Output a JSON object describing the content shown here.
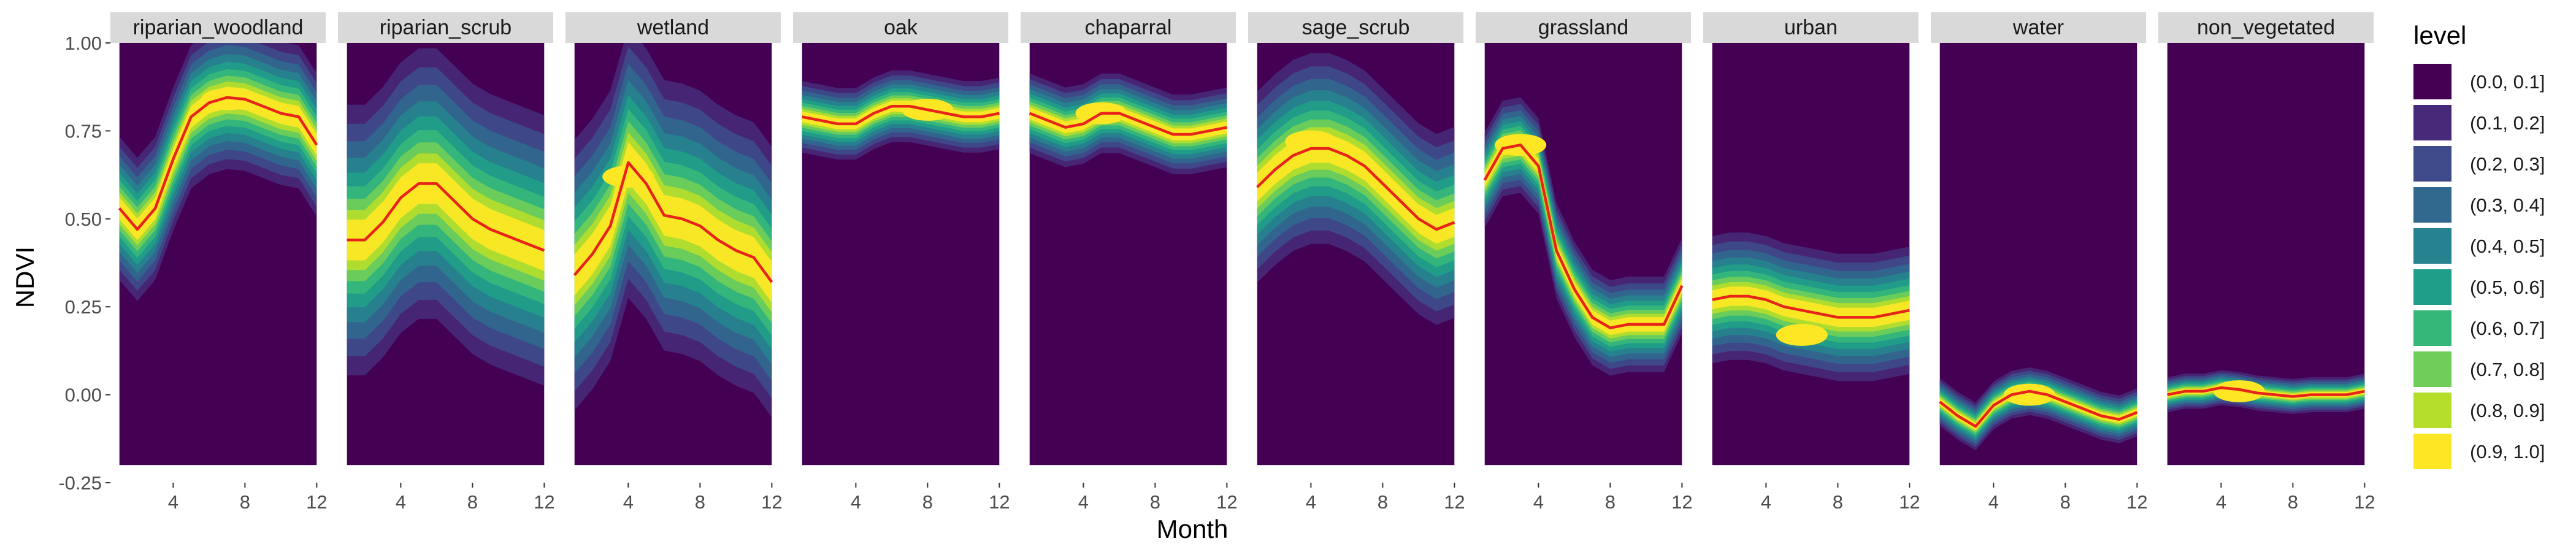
{
  "colors": {
    "strip_bg": "#d9d9d9",
    "tick": "#333333",
    "mean_line": "#e8231a",
    "levels": [
      "#440154",
      "#482878",
      "#3e4a89",
      "#31688e",
      "#26828e",
      "#1f9e89",
      "#35b779",
      "#6ece58",
      "#b5de2b",
      "#fde725"
    ]
  },
  "chart_data": {
    "type": "area",
    "subtype": "faceted filled 2D density (month vs NDVI) with monthly mean line",
    "xlabel": "Month",
    "ylabel": "NDVI",
    "xlim": [
      0.5,
      12.5
    ],
    "ylim": [
      -0.25,
      1.0
    ],
    "x_ticks": [
      4,
      8,
      12
    ],
    "x_tick_labels": [
      "4",
      "8",
      "12"
    ],
    "y_ticks": [
      1.0,
      0.75,
      0.5,
      0.25,
      0.0,
      -0.25
    ],
    "y_tick_labels": [
      "1.00",
      "0.75",
      "0.50",
      "0.25",
      "0.00",
      "-0.25"
    ],
    "density_band": {
      "x": [
        1,
        12
      ],
      "y": [
        -0.2,
        1.0
      ]
    },
    "legend": {
      "title": "level",
      "position": "right",
      "entries": [
        "(0.0, 0.1]",
        "(0.1, 0.2]",
        "(0.2, 0.3]",
        "(0.3, 0.4]",
        "(0.4, 0.5]",
        "(0.5, 0.6]",
        "(0.6, 0.7]",
        "(0.7, 0.8]",
        "(0.8, 0.9]",
        "(0.9, 1.0]"
      ]
    },
    "facets": [
      {
        "name": "riparian_woodland",
        "mean": [
          0.53,
          0.47,
          0.53,
          0.67,
          0.79,
          0.83,
          0.845,
          0.84,
          0.82,
          0.8,
          0.79,
          0.71
        ],
        "spread": 0.09,
        "peak_x": 7,
        "peak_y": 0.84
      },
      {
        "name": "riparian_scrub",
        "mean": [
          0.44,
          0.44,
          0.49,
          0.56,
          0.6,
          0.6,
          0.55,
          0.5,
          0.47,
          0.45,
          0.43,
          0.41
        ],
        "spread": 0.17,
        "peak_x": 5,
        "peak_y": 0.58
      },
      {
        "name": "wetland",
        "mean": [
          0.34,
          0.4,
          0.48,
          0.66,
          0.6,
          0.51,
          0.5,
          0.48,
          0.44,
          0.41,
          0.39,
          0.32
        ],
        "spread": 0.17,
        "peak_x": 4,
        "peak_y": 0.62
      },
      {
        "name": "oak",
        "mean": [
          0.79,
          0.78,
          0.77,
          0.77,
          0.8,
          0.82,
          0.82,
          0.81,
          0.8,
          0.79,
          0.79,
          0.8
        ],
        "spread": 0.045,
        "peak_x": 8,
        "peak_y": 0.81
      },
      {
        "name": "chaparral",
        "mean": [
          0.8,
          0.78,
          0.76,
          0.77,
          0.8,
          0.8,
          0.78,
          0.76,
          0.74,
          0.74,
          0.75,
          0.76
        ],
        "spread": 0.05,
        "peak_x": 5,
        "peak_y": 0.8
      },
      {
        "name": "sage_scrub",
        "mean": [
          0.59,
          0.64,
          0.68,
          0.7,
          0.7,
          0.68,
          0.65,
          0.6,
          0.55,
          0.5,
          0.47,
          0.49
        ],
        "spread": 0.12,
        "peak_x": 4,
        "peak_y": 0.72
      },
      {
        "name": "grassland",
        "mean": [
          0.61,
          0.7,
          0.71,
          0.65,
          0.41,
          0.3,
          0.22,
          0.19,
          0.2,
          0.2,
          0.2,
          0.31
        ],
        "spread": 0.06,
        "peak_x": 3,
        "peak_y": 0.71
      },
      {
        "name": "urban",
        "mean": [
          0.27,
          0.28,
          0.28,
          0.27,
          0.25,
          0.24,
          0.23,
          0.22,
          0.22,
          0.22,
          0.23,
          0.24
        ],
        "spread": 0.08,
        "peak_x": 6,
        "peak_y": 0.17
      },
      {
        "name": "water",
        "mean": [
          -0.02,
          -0.06,
          -0.09,
          -0.03,
          0.0,
          0.01,
          0.0,
          -0.02,
          -0.04,
          -0.06,
          -0.07,
          -0.05
        ],
        "spread": 0.03,
        "peak_x": 6,
        "peak_y": 0.0
      },
      {
        "name": "non_vegetated",
        "mean": [
          0.0,
          0.01,
          0.01,
          0.02,
          0.015,
          0.005,
          0.0,
          -0.005,
          0.0,
          0.0,
          0.0,
          0.01
        ],
        "spread": 0.022,
        "peak_x": 5,
        "peak_y": 0.01
      }
    ]
  }
}
